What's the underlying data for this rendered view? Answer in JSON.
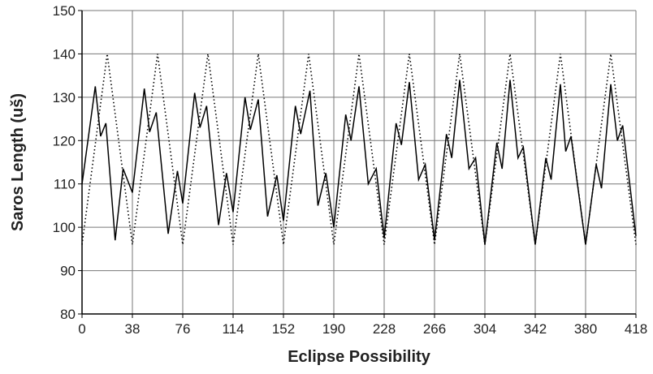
{
  "chart_data": {
    "type": "line",
    "x_label": "Eclipse Possibility",
    "y_label": "Saros Length (uš)",
    "xlim": [
      0,
      418
    ],
    "xticks": [
      0,
      38,
      76,
      114,
      152,
      190,
      228,
      266,
      304,
      342,
      380,
      418
    ],
    "ylim": [
      80,
      150
    ],
    "yticks": [
      80,
      90,
      100,
      110,
      120,
      130,
      140,
      150
    ],
    "grid": true,
    "series": [
      {
        "color": "#000000",
        "dash": "solid",
        "x": [
          0,
          10,
          14,
          18,
          25,
          31,
          38,
          47,
          51,
          56,
          65,
          72,
          76,
          85,
          89,
          94,
          103,
          109,
          114,
          123,
          127,
          133,
          140,
          147,
          152,
          161,
          165,
          172,
          178,
          184,
          190,
          199,
          203,
          209,
          216,
          222,
          228,
          237,
          241,
          247,
          254,
          259,
          266,
          275,
          279,
          285,
          292,
          297,
          304,
          313,
          317,
          323,
          329,
          333,
          342,
          350,
          354,
          361,
          365,
          369,
          380,
          388,
          392,
          399,
          404,
          408,
          418
        ],
        "values": [
          110,
          132.5,
          121,
          124,
          97,
          113.5,
          108,
          132,
          122,
          126.5,
          98.5,
          113,
          105.5,
          131,
          123,
          128,
          100.5,
          112.5,
          103.5,
          130,
          122.5,
          129.5,
          102.5,
          112,
          101.5,
          128,
          121.5,
          131.5,
          105,
          112.5,
          100,
          126,
          120,
          132.5,
          110,
          113.5,
          97.5,
          124,
          119,
          133.5,
          111,
          114.5,
          97,
          121.5,
          116,
          134,
          113.5,
          116,
          96,
          119.5,
          113.5,
          134,
          116,
          118.5,
          96,
          116,
          111,
          133,
          117.5,
          121,
          96,
          114.5,
          109,
          133,
          120,
          123.5,
          98
        ]
      },
      {
        "color": "#000000",
        "dash": "dotted",
        "x": [
          0,
          19,
          38,
          57,
          76,
          95,
          114,
          133,
          152,
          171,
          190,
          209,
          228,
          247,
          266,
          285,
          304,
          323,
          342,
          361,
          380,
          399,
          418
        ],
        "values": [
          96,
          140,
          96,
          140,
          96,
          140,
          96,
          140,
          96,
          140,
          96,
          140,
          96,
          140,
          96,
          140,
          96,
          140,
          96,
          140,
          96,
          140,
          96
        ]
      }
    ]
  }
}
